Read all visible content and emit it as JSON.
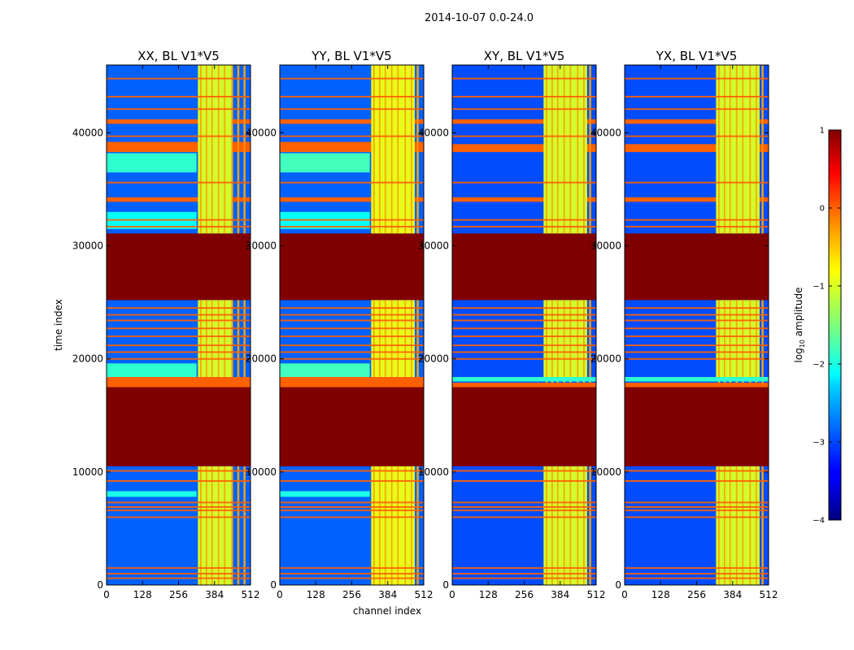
{
  "chart_data": {
    "type": "heatmap",
    "suptitle": "2014-10-07 0.0-24.0",
    "xlabel": "channel index",
    "ylabel": "time index",
    "xlim": [
      0,
      512
    ],
    "ylim": [
      0,
      46000
    ],
    "xticks": [
      0,
      128,
      256,
      384,
      512
    ],
    "yticks": [
      0,
      10000,
      20000,
      30000,
      40000
    ],
    "colorbar": {
      "label": "log10 amplitude",
      "label_main": "log",
      "label_sub": "10",
      "label_rest": " amplitude",
      "range": [
        -4,
        1
      ],
      "ticks": [
        1,
        0,
        -1,
        -2,
        -3,
        -4
      ],
      "tick_labels": [
        "1",
        "0",
        "−1",
        "−2",
        "−3",
        "−4"
      ],
      "colormap": "jet"
    },
    "panels": [
      {
        "title": "XX, BL V1*V5",
        "background_value": -2.9,
        "regions": [
          {
            "t0": 10500,
            "t1": 17500,
            "c0": 0,
            "c1": 512,
            "value": 1
          },
          {
            "t0": 25200,
            "t1": 31100,
            "c0": 0,
            "c1": 512,
            "value": 1
          },
          {
            "t0": 17500,
            "t1": 18400,
            "c0": 0,
            "c1": 512,
            "value": -0.1
          },
          {
            "t0": 38300,
            "t1": 39200,
            "c0": 0,
            "c1": 512,
            "value": -0.1
          },
          {
            "t0": 33900,
            "t1": 34300,
            "c0": 0,
            "c1": 512,
            "value": -0.1
          },
          {
            "t0": 40800,
            "t1": 41200,
            "c0": 0,
            "c1": 512,
            "value": -0.1
          },
          {
            "t0": 36500,
            "t1": 38200,
            "c0": 0,
            "c1": 320,
            "value": -1.9
          },
          {
            "t0": 31500,
            "t1": 33000,
            "c0": 0,
            "c1": 320,
            "value": -2.1
          },
          {
            "t0": 18400,
            "t1": 19600,
            "c0": 0,
            "c1": 320,
            "value": -1.9
          },
          {
            "t0": 7800,
            "t1": 8300,
            "c0": 0,
            "c1": 320,
            "value": -2.0
          },
          {
            "t0": 0,
            "t1": 10500,
            "c0": 325,
            "c1": 445,
            "value": -1.1
          },
          {
            "t0": 18400,
            "t1": 25200,
            "c0": 325,
            "c1": 445,
            "value": -1.1
          },
          {
            "t0": 31100,
            "t1": 46000,
            "c0": 325,
            "c1": 445,
            "value": -1.1
          }
        ],
        "lines": [
          44800,
          43200,
          42100,
          39700,
          35600,
          32300,
          31700,
          24500,
          23900,
          23400,
          22700,
          22000,
          21200,
          20600,
          20000,
          10100,
          9200,
          7300,
          6900,
          6600,
          6000,
          1500,
          1000,
          600
        ],
        "stripes": [
          335,
          355,
          375,
          398,
          420,
          446,
          468,
          490
        ]
      },
      {
        "title": "YY, BL V1*V5",
        "background_value": -2.9,
        "regions": [
          {
            "t0": 10500,
            "t1": 17500,
            "c0": 0,
            "c1": 512,
            "value": 1
          },
          {
            "t0": 25200,
            "t1": 31100,
            "c0": 0,
            "c1": 512,
            "value": 1
          },
          {
            "t0": 17500,
            "t1": 18400,
            "c0": 0,
            "c1": 512,
            "value": -0.1
          },
          {
            "t0": 38300,
            "t1": 39200,
            "c0": 0,
            "c1": 512,
            "value": -0.1
          },
          {
            "t0": 33900,
            "t1": 34300,
            "c0": 0,
            "c1": 512,
            "value": -0.1
          },
          {
            "t0": 40800,
            "t1": 41200,
            "c0": 0,
            "c1": 512,
            "value": -0.1
          },
          {
            "t0": 36500,
            "t1": 38200,
            "c0": 0,
            "c1": 320,
            "value": -1.8
          },
          {
            "t0": 31500,
            "t1": 33000,
            "c0": 0,
            "c1": 320,
            "value": -2.1
          },
          {
            "t0": 18400,
            "t1": 19600,
            "c0": 0,
            "c1": 320,
            "value": -1.8
          },
          {
            "t0": 7800,
            "t1": 8300,
            "c0": 0,
            "c1": 320,
            "value": -2.0
          },
          {
            "t0": 0,
            "t1": 10500,
            "c0": 325,
            "c1": 480,
            "value": -1.0
          },
          {
            "t0": 18400,
            "t1": 25200,
            "c0": 325,
            "c1": 480,
            "value": -1.0
          },
          {
            "t0": 31100,
            "t1": 46000,
            "c0": 325,
            "c1": 480,
            "value": -1.0
          }
        ],
        "lines": [
          44800,
          43200,
          42100,
          39700,
          35600,
          32300,
          31700,
          24500,
          23900,
          23400,
          22700,
          22000,
          21200,
          20600,
          20000,
          10100,
          9200,
          7300,
          6900,
          6600,
          6000,
          1500,
          1000,
          600
        ],
        "stripes": [
          335,
          355,
          375,
          398,
          420,
          446,
          468,
          490
        ]
      },
      {
        "title": "XY, BL V1*V5",
        "background_value": -3.0,
        "regions": [
          {
            "t0": 10500,
            "t1": 17500,
            "c0": 0,
            "c1": 512,
            "value": 1
          },
          {
            "t0": 25200,
            "t1": 31100,
            "c0": 0,
            "c1": 512,
            "value": 1
          },
          {
            "t0": 17500,
            "t1": 17900,
            "c0": 0,
            "c1": 512,
            "value": -0.1
          },
          {
            "t0": 18000,
            "t1": 18400,
            "c0": 0,
            "c1": 512,
            "value": -1.9
          },
          {
            "t0": 38300,
            "t1": 39000,
            "c0": 0,
            "c1": 512,
            "value": -0.1
          },
          {
            "t0": 33900,
            "t1": 34300,
            "c0": 0,
            "c1": 512,
            "value": -0.1
          },
          {
            "t0": 40800,
            "t1": 41200,
            "c0": 0,
            "c1": 512,
            "value": -0.1
          },
          {
            "t0": 0,
            "t1": 10500,
            "c0": 325,
            "c1": 480,
            "value": -1.1
          },
          {
            "t0": 18400,
            "t1": 25200,
            "c0": 325,
            "c1": 480,
            "value": -1.1
          },
          {
            "t0": 31100,
            "t1": 46000,
            "c0": 325,
            "c1": 480,
            "value": -1.1
          }
        ],
        "lines": [
          44800,
          43200,
          42100,
          39700,
          35600,
          32300,
          31700,
          24500,
          23900,
          23400,
          22700,
          22000,
          21200,
          20600,
          20000,
          10100,
          9200,
          7300,
          6900,
          6600,
          6000,
          1500,
          1000,
          600
        ],
        "stripes": [
          335,
          355,
          375,
          398,
          420,
          446,
          468,
          490
        ]
      },
      {
        "title": "YX, BL V1*V5",
        "background_value": -3.0,
        "regions": [
          {
            "t0": 10500,
            "t1": 17500,
            "c0": 0,
            "c1": 512,
            "value": 1
          },
          {
            "t0": 25200,
            "t1": 31100,
            "c0": 0,
            "c1": 512,
            "value": 1
          },
          {
            "t0": 17500,
            "t1": 17900,
            "c0": 0,
            "c1": 512,
            "value": -0.1
          },
          {
            "t0": 18000,
            "t1": 18400,
            "c0": 0,
            "c1": 512,
            "value": -1.9
          },
          {
            "t0": 38300,
            "t1": 39000,
            "c0": 0,
            "c1": 512,
            "value": -0.1
          },
          {
            "t0": 33900,
            "t1": 34300,
            "c0": 0,
            "c1": 512,
            "value": -0.1
          },
          {
            "t0": 40800,
            "t1": 41200,
            "c0": 0,
            "c1": 512,
            "value": -0.1
          },
          {
            "t0": 0,
            "t1": 10500,
            "c0": 325,
            "c1": 480,
            "value": -1.1
          },
          {
            "t0": 18400,
            "t1": 25200,
            "c0": 325,
            "c1": 480,
            "value": -1.1
          },
          {
            "t0": 31100,
            "t1": 46000,
            "c0": 325,
            "c1": 480,
            "value": -1.1
          }
        ],
        "lines": [
          44800,
          43200,
          42100,
          39700,
          35600,
          32300,
          31700,
          24500,
          23900,
          23400,
          22700,
          22000,
          21200,
          20600,
          20000,
          10100,
          9200,
          7300,
          6900,
          6600,
          6000,
          1500,
          1000,
          600
        ],
        "stripes": [
          335,
          355,
          375,
          398,
          420,
          446,
          468,
          490
        ]
      }
    ]
  }
}
